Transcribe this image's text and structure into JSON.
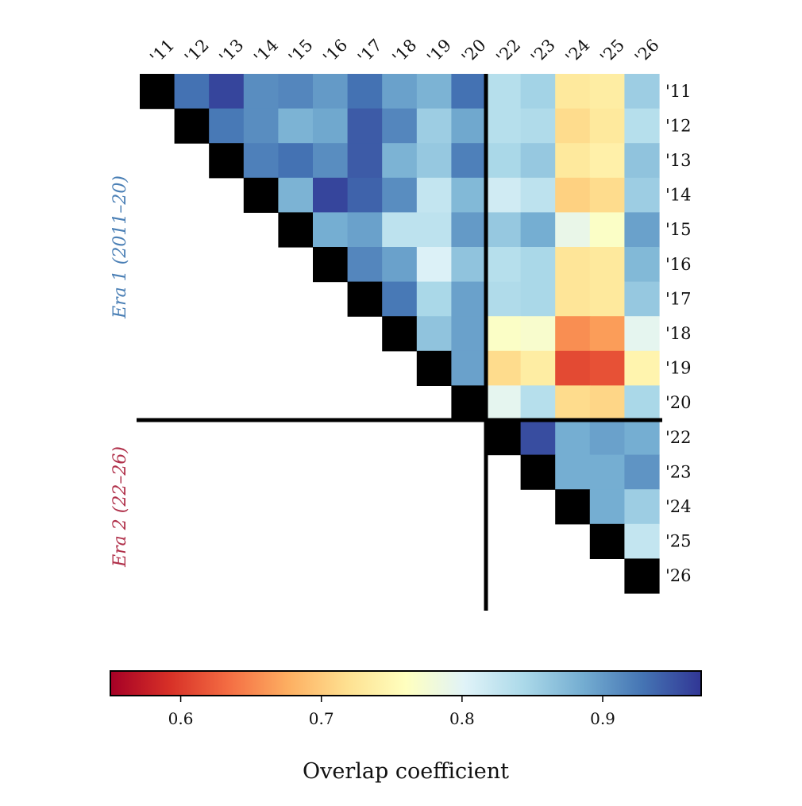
{
  "chart_data": {
    "type": "heatmap",
    "title": "",
    "x_tick_labels": [
      "'11",
      "'12",
      "'13",
      "'14",
      "'15",
      "'16",
      "'17",
      "'18",
      "'19",
      "'20",
      "'22",
      "'23",
      "'24",
      "'25",
      "'26"
    ],
    "y_tick_labels": [
      "'11",
      "'12",
      "'13",
      "'14",
      "'15",
      "'16",
      "'17",
      "'18",
      "'19",
      "'20",
      "'22",
      "'23",
      "'24",
      "'25",
      "'26"
    ],
    "era_labels": [
      "Era 1 (2011–20)",
      "Era 2 (22–26)"
    ],
    "era_boundary_after_index": 9,
    "diagonal": "black",
    "values": [
      [
        null,
        0.93,
        0.96,
        0.91,
        0.915,
        0.9,
        0.93,
        0.895,
        0.88,
        0.93,
        0.835,
        0.85,
        0.73,
        0.735,
        0.855
      ],
      [
        null,
        null,
        0.925,
        0.91,
        0.88,
        0.89,
        0.945,
        0.915,
        0.855,
        0.89,
        0.835,
        0.84,
        0.715,
        0.73,
        0.835
      ],
      [
        null,
        null,
        null,
        0.92,
        0.93,
        0.91,
        0.945,
        0.88,
        0.86,
        0.92,
        0.845,
        0.86,
        0.73,
        0.74,
        0.865
      ],
      [
        null,
        null,
        null,
        null,
        0.88,
        0.96,
        0.94,
        0.91,
        0.825,
        0.875,
        0.815,
        0.83,
        0.705,
        0.715,
        0.855
      ],
      [
        null,
        null,
        null,
        null,
        null,
        0.885,
        0.895,
        0.83,
        0.83,
        0.9,
        0.86,
        0.885,
        0.79,
        0.765,
        0.895
      ],
      [
        null,
        null,
        null,
        null,
        null,
        null,
        0.915,
        0.895,
        0.805,
        0.865,
        0.835,
        0.845,
        0.725,
        0.73,
        0.875
      ],
      [
        null,
        null,
        null,
        null,
        null,
        null,
        null,
        0.925,
        0.845,
        0.895,
        0.84,
        0.845,
        0.725,
        0.73,
        0.86
      ],
      [
        null,
        null,
        null,
        null,
        null,
        null,
        null,
        null,
        0.865,
        0.895,
        0.765,
        0.77,
        0.655,
        0.665,
        0.795
      ],
      [
        null,
        null,
        null,
        null,
        null,
        null,
        null,
        null,
        null,
        0.895,
        0.715,
        0.735,
        0.61,
        0.615,
        0.745
      ],
      [
        null,
        null,
        null,
        null,
        null,
        null,
        null,
        null,
        null,
        null,
        0.795,
        0.835,
        0.715,
        0.71,
        0.845
      ],
      [
        null,
        null,
        null,
        null,
        null,
        null,
        null,
        null,
        null,
        null,
        null,
        0.955,
        0.885,
        0.895,
        0.885
      ],
      [
        null,
        null,
        null,
        null,
        null,
        null,
        null,
        null,
        null,
        null,
        null,
        null,
        0.885,
        0.885,
        0.905
      ],
      [
        null,
        null,
        null,
        null,
        null,
        null,
        null,
        null,
        null,
        null,
        null,
        null,
        null,
        0.885,
        0.855
      ],
      [
        null,
        null,
        null,
        null,
        null,
        null,
        null,
        null,
        null,
        null,
        null,
        null,
        null,
        null,
        0.825
      ],
      [
        null,
        null,
        null,
        null,
        null,
        null,
        null,
        null,
        null,
        null,
        null,
        null,
        null,
        null,
        null
      ]
    ],
    "colorbar": {
      "label": "Overlap coefficient",
      "range": [
        0.55,
        0.97
      ],
      "ticks": [
        0.6,
        0.7,
        0.8,
        0.9
      ],
      "tick_labels": [
        "0.6",
        "0.7",
        "0.8",
        "0.9"
      ],
      "colormap": "RdYlBu",
      "stops": [
        "#a50026",
        "#d73027",
        "#f46d43",
        "#fdae61",
        "#fee090",
        "#ffffbf",
        "#e0f3f8",
        "#abd9e9",
        "#74add1",
        "#4575b4",
        "#313695"
      ]
    },
    "colors": {
      "diagonal": "#000000",
      "era1_label": "#4a7fb5",
      "era2_label": "#b0304a",
      "divider": "#000000"
    }
  }
}
